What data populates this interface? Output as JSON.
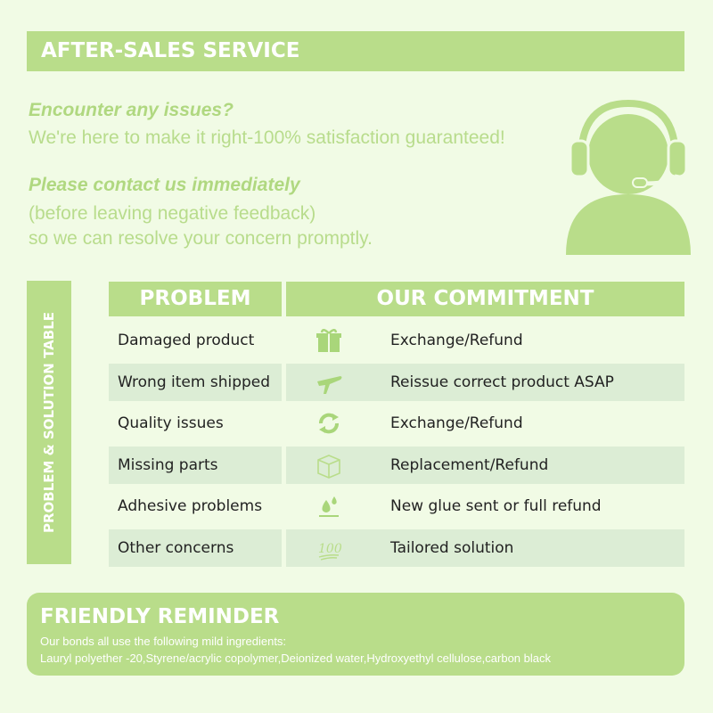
{
  "header": {
    "title": "AFTER-SALES SERVICE"
  },
  "intro": {
    "q1": "Encounter any issues?",
    "l1": "We're here to make it right-100% satisfaction guaranteed!",
    "q2": "Please contact us immediately",
    "l2": "(before leaving negative feedback)",
    "l3": "so we can resolve your concern promptly.",
    "icon": "customer-service-headset-icon"
  },
  "table": {
    "side_label": "PROBLEM & SOLUTION TABLE",
    "col1": "PROBLEM",
    "col2": "OUR COMMITMENT",
    "rows": [
      {
        "problem": "Damaged product",
        "icon": "gift-icon",
        "commitment": "Exchange/Refund"
      },
      {
        "problem": "Wrong item shipped",
        "icon": "airplane-icon",
        "commitment": "Reissue correct product ASAP"
      },
      {
        "problem": "Quality issues",
        "icon": "refresh-icon",
        "commitment": "Exchange/Refund"
      },
      {
        "problem": "Missing parts",
        "icon": "box-icon",
        "commitment": "Replacement/Refund"
      },
      {
        "problem": "Adhesive problems",
        "icon": "water-drops-icon",
        "commitment": "New glue sent or full refund"
      },
      {
        "problem": "Other concerns",
        "icon": "hundred-icon",
        "commitment": "Tailored solution"
      }
    ]
  },
  "reminder": {
    "title": "FRIENDLY REMINDER",
    "l1": "Our bonds all use the following mild ingredients:",
    "l2": "Lauryl polyether -20,Styrene/acrylic copolymer,Deionized water,Hydroxyethyl cellulose,carbon black"
  },
  "colors": {
    "accent": "#b9dd8a",
    "background": "#f1fbe5",
    "row_alt": "#dcedd5"
  }
}
